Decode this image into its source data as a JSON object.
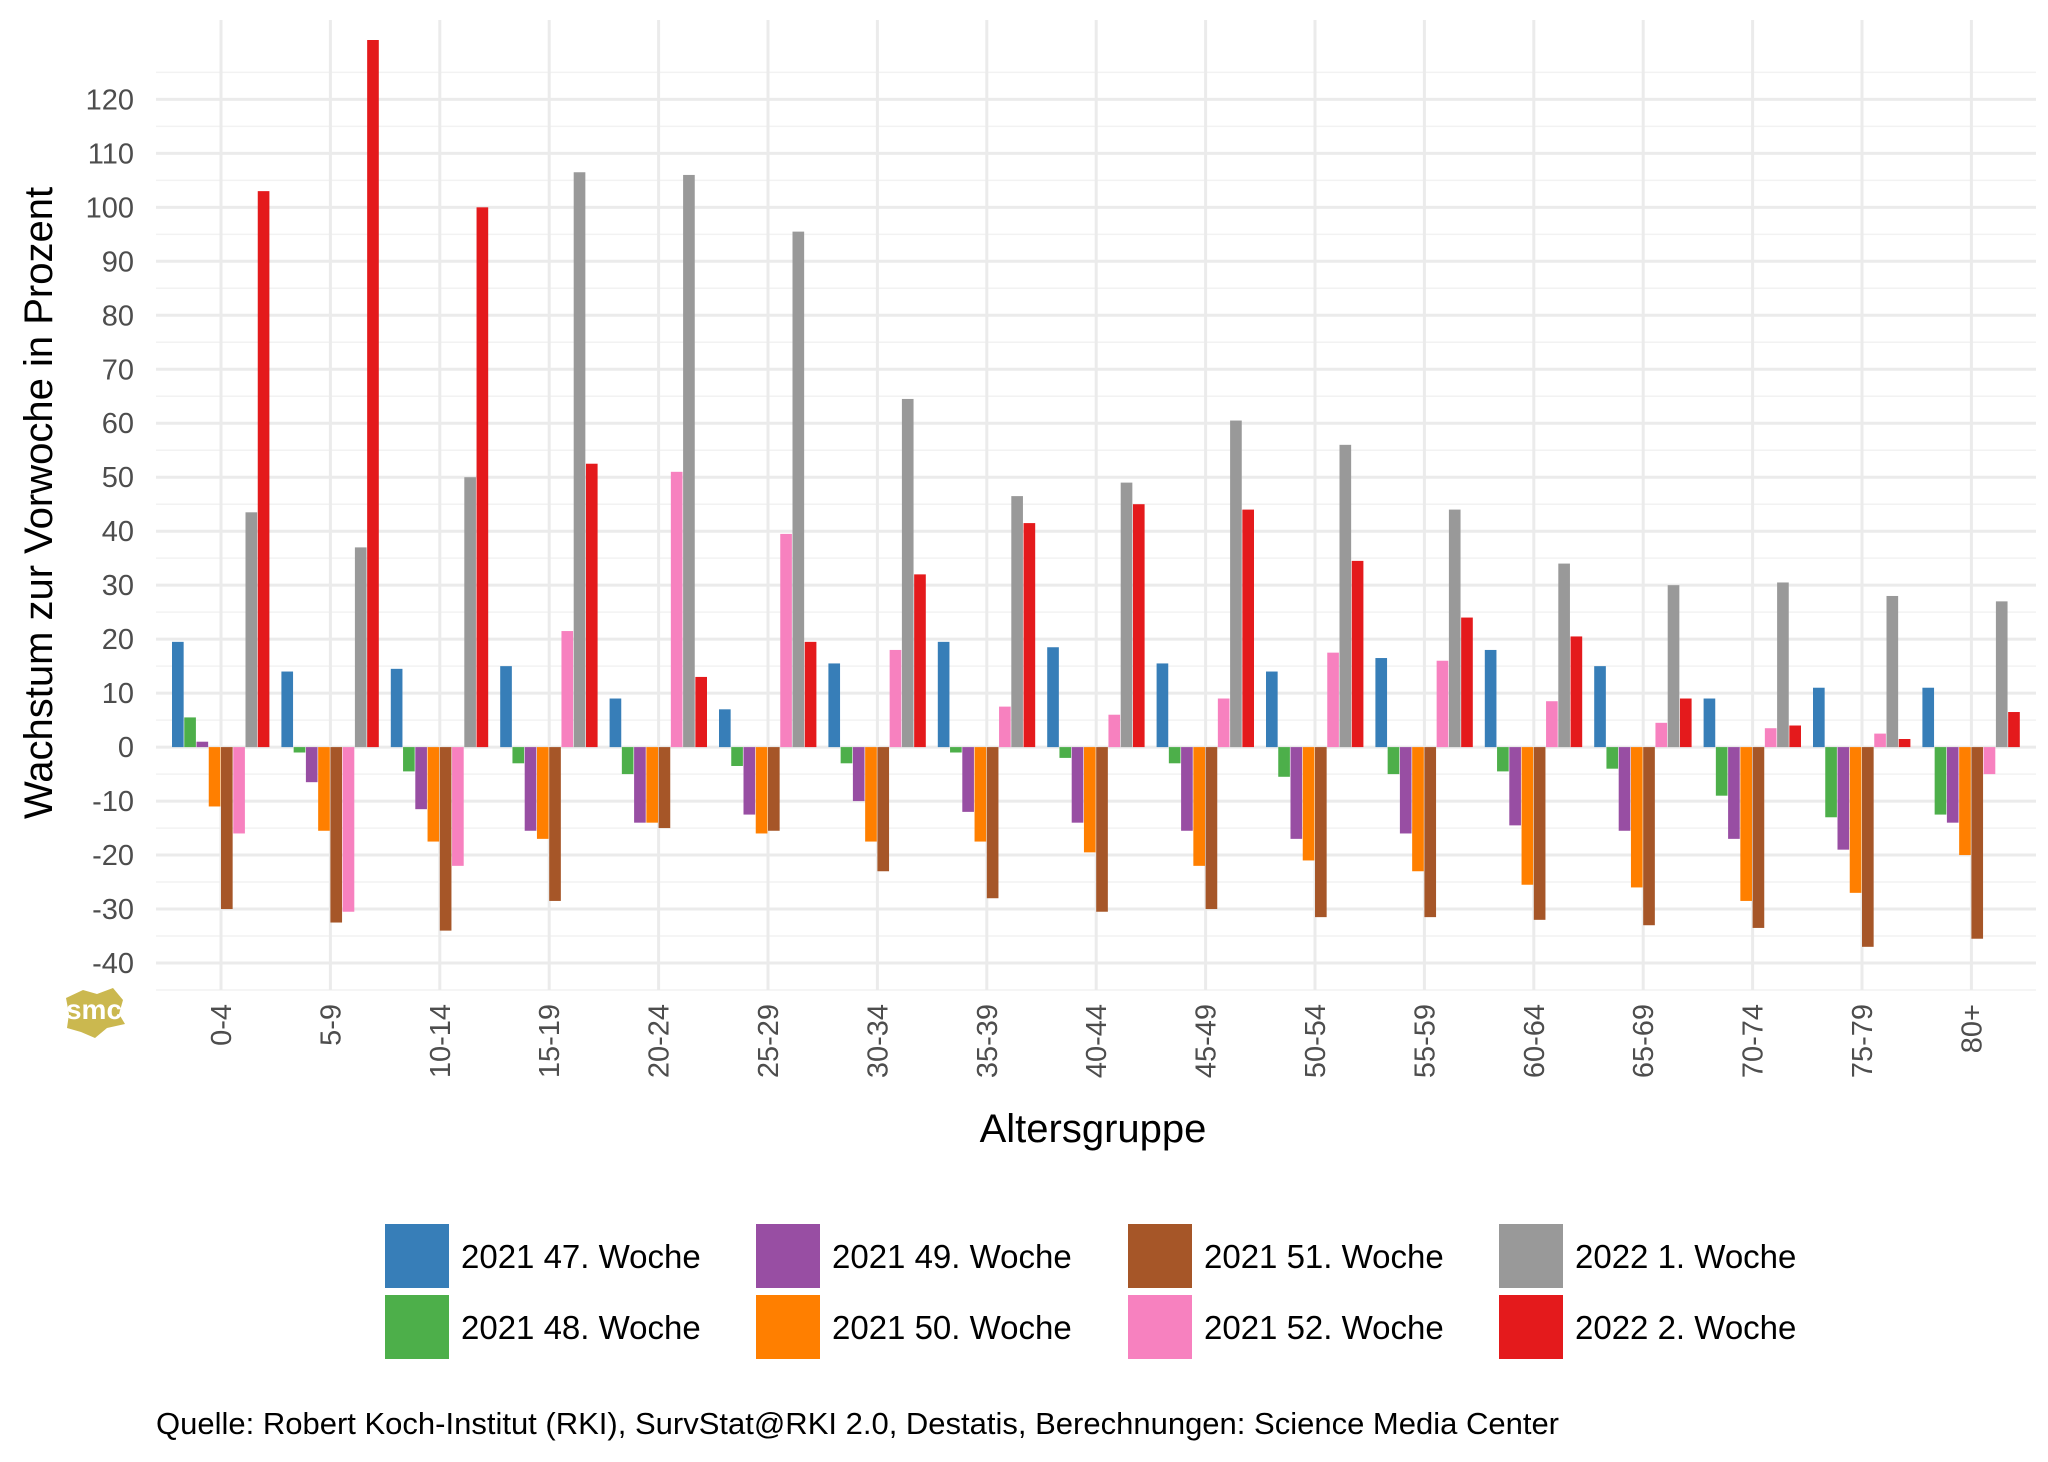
{
  "chart_data": {
    "type": "bar",
    "title": "",
    "xlabel": "Altersgruppe",
    "ylabel": "Wachstum zur Vorwoche in Prozent",
    "ylim": [
      -45,
      131
    ],
    "yticks": [
      -40,
      -30,
      -20,
      -10,
      0,
      10,
      20,
      30,
      40,
      50,
      60,
      70,
      80,
      90,
      100,
      110,
      120
    ],
    "grid": true,
    "legend_position": "bottom",
    "categories": [
      "0-4",
      "5-9",
      "10-14",
      "15-19",
      "20-24",
      "25-29",
      "30-34",
      "35-39",
      "40-44",
      "45-49",
      "50-54",
      "55-59",
      "60-64",
      "65-69",
      "70-74",
      "75-79",
      "80+"
    ],
    "series": [
      {
        "name": "2021 47. Woche",
        "color": "#377EB8",
        "values": [
          19.5,
          14,
          14.5,
          15,
          9,
          7,
          15.5,
          19.5,
          18.5,
          15.5,
          14,
          16.5,
          18,
          15,
          9,
          11,
          11
        ]
      },
      {
        "name": "2021 48. Woche",
        "color": "#4DAF4A",
        "values": [
          5.5,
          -1,
          -4.5,
          -3,
          -5,
          -3.5,
          -3,
          -1,
          -2,
          -3,
          -5.5,
          -5,
          -4.5,
          -4,
          -9,
          -13,
          -12.5
        ]
      },
      {
        "name": "2021 49. Woche",
        "color": "#984EA3",
        "values": [
          1,
          -6.5,
          -11.5,
          -15.5,
          -14,
          -12.5,
          -10,
          -12,
          -14,
          -15.5,
          -17,
          -16,
          -14.5,
          -15.5,
          -17,
          -19,
          -14
        ]
      },
      {
        "name": "2021 50. Woche",
        "color": "#FF7F00",
        "values": [
          -11,
          -15.5,
          -17.5,
          -17,
          -14,
          -16,
          -17.5,
          -17.5,
          -19.5,
          -22,
          -21,
          -23,
          -25.5,
          -26,
          -28.5,
          -27,
          -20
        ]
      },
      {
        "name": "2021 51. Woche",
        "color": "#A65628",
        "values": [
          -30,
          -32.5,
          -34,
          -28.5,
          -15,
          -15.5,
          -23,
          -28,
          -30.5,
          -30,
          -31.5,
          -31.5,
          -32,
          -33,
          -33.5,
          -37,
          -35.5
        ]
      },
      {
        "name": "2021 52. Woche",
        "color": "#F781BF",
        "values": [
          -16,
          -30.5,
          -22,
          21.5,
          51,
          39.5,
          18,
          7.5,
          6,
          9,
          17.5,
          16,
          8.5,
          4.5,
          3.5,
          2.5,
          -5
        ]
      },
      {
        "name": "2022 1. Woche",
        "color": "#999999",
        "values": [
          43.5,
          37,
          50,
          106.5,
          106,
          95.5,
          64.5,
          46.5,
          49,
          60.5,
          56,
          44,
          34,
          30,
          30.5,
          28,
          27
        ]
      },
      {
        "name": "2022 2. Woche",
        "color": "#E41A1C",
        "values": [
          103,
          131,
          100,
          52.5,
          13,
          19.5,
          32,
          41.5,
          45,
          44,
          34.5,
          24,
          20.5,
          9,
          4,
          1.5,
          6.5
        ]
      }
    ],
    "caption": "Quelle: Robert Koch-Institut (RKI), SurvStat@RKI 2.0, Destatis, Berechnungen: Science Media Center",
    "logo_text": "smc"
  }
}
